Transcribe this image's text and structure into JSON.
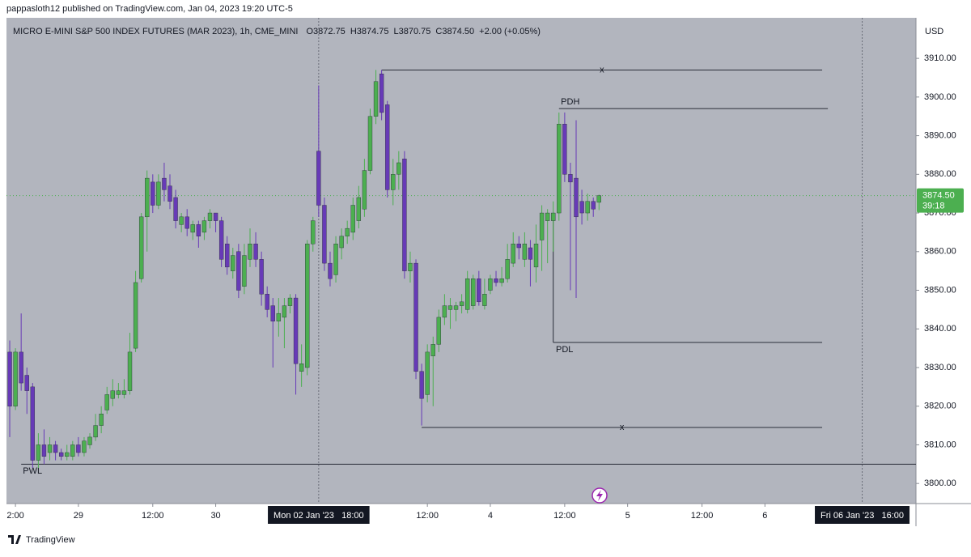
{
  "chart_data": {
    "type": "candlestick",
    "publisher": "pappasloth12 published on TradingView.com, Jan 04, 2023 19:20 UTC-5",
    "title": "MICRO E-MINI S&P 500 INDEX FUTURES (MAR 2023), 1h, CME_MINI",
    "legend": {
      "open": "O3872.75",
      "high": "H3874.75",
      "low": "L3870.75",
      "close": "C3874.50",
      "change": "+2.00 (+0.05%)"
    },
    "currency": "USD",
    "brand": "TradingView",
    "up_color": "#4caf50",
    "down_color": "#673ab7",
    "open": [
      3834,
      3820,
      3834,
      3828,
      3825,
      3806,
      3810,
      3808,
      3810,
      3808,
      3807,
      3807,
      3810,
      3808,
      3810,
      3812,
      3815,
      3819,
      3822,
      3823,
      3823,
      3824,
      3835,
      3853,
      3869,
      3878,
      3872,
      3879,
      3877,
      3874,
      3867,
      3869,
      3865,
      3867,
      3865,
      3868,
      3870,
      3868,
      3862,
      3855,
      3860,
      3851,
      3858,
      3862,
      3858,
      3849,
      3846,
      3842,
      3843,
      3846,
      3848,
      3829,
      3830,
      3862,
      3886,
      3872,
      3857,
      3854,
      3861,
      3864,
      3865,
      3868,
      3871,
      3881,
      3895,
      3906,
      3898,
      3876,
      3880,
      3884,
      3855,
      3857,
      3829,
      3823,
      3833,
      3836,
      3843,
      3845,
      3845,
      3846,
      3845,
      3846,
      3853,
      3846,
      3850,
      3853,
      3852,
      3853,
      3857,
      3862,
      3858,
      3861,
      3856,
      3863,
      3868,
      3868,
      3870,
      3893,
      3880,
      3879,
      3873,
      3870,
      3873,
      3872.75
    ],
    "high": [
      3837,
      3835,
      3844,
      3830,
      3826,
      3813,
      3814,
      3812,
      3811,
      3809,
      3810,
      3811,
      3812,
      3812,
      3813,
      3818,
      3820,
      3825,
      3827,
      3826,
      3827,
      3839,
      3855,
      3870,
      3881,
      3880,
      3880,
      3883,
      3880,
      3876,
      3870,
      3871,
      3868,
      3868,
      3869,
      3871,
      3870,
      3869,
      3864,
      3861,
      3862,
      3862,
      3866,
      3865,
      3860,
      3851,
      3848,
      3848,
      3848,
      3849,
      3849,
      3836,
      3863,
      3869,
      3903,
      3874,
      3860,
      3864,
      3866,
      3868,
      3874,
      3877,
      3884,
      3897,
      3907,
      3907,
      3899,
      3884,
      3886,
      3886,
      3860,
      3858,
      3831,
      3836,
      3838,
      3845,
      3849,
      3848,
      3847,
      3849,
      3855,
      3854,
      3855,
      3853,
      3854,
      3855,
      3856,
      3862,
      3865,
      3864,
      3865,
      3863,
      3867,
      3872,
      3871,
      3873,
      3896,
      3896,
      3883,
      3894,
      3876,
      3875,
      3874,
      3874.75
    ],
    "low": [
      3812,
      3819,
      3824,
      3818,
      3804,
      3804,
      3805,
      3806,
      3806,
      3806,
      3806,
      3806,
      3807,
      3807,
      3809,
      3811,
      3813,
      3818,
      3820,
      3822,
      3822,
      3823,
      3834,
      3852,
      3860,
      3870,
      3871,
      3873,
      3871,
      3866,
      3865,
      3864,
      3863,
      3861,
      3863,
      3866,
      3865,
      3856,
      3854,
      3853,
      3848,
      3849,
      3856,
      3856,
      3846,
      3843,
      3830,
      3838,
      3835,
      3844,
      3823,
      3825,
      3828,
      3860,
      3869,
      3855,
      3851,
      3852,
      3858,
      3862,
      3863,
      3866,
      3869,
      3880,
      3893,
      3894,
      3874,
      3872,
      3876,
      3853,
      3852,
      3827,
      3815,
      3821,
      3820,
      3834,
      3841,
      3840,
      3842,
      3844,
      3844,
      3845,
      3846,
      3845,
      3849,
      3851,
      3851,
      3852,
      3856,
      3858,
      3856,
      3851,
      3852,
      3855,
      3857,
      3860,
      3868,
      3878,
      3850,
      3848,
      3867,
      3868,
      3869,
      3870.75
    ],
    "close": [
      3820,
      3834,
      3826,
      3824,
      3806,
      3810,
      3807,
      3810,
      3808,
      3807,
      3808,
      3810,
      3808,
      3811,
      3812,
      3815,
      3818,
      3823,
      3824,
      3824,
      3824,
      3834,
      3852,
      3869,
      3879,
      3872,
      3878,
      3876,
      3873,
      3868,
      3869,
      3866,
      3867,
      3864,
      3868,
      3870,
      3868,
      3858,
      3856,
      3859,
      3850,
      3859,
      3862,
      3858,
      3849,
      3845,
      3842,
      3844,
      3846,
      3848,
      3831,
      3831,
      3862,
      3868,
      3872,
      3857,
      3853,
      3862,
      3864,
      3866,
      3872,
      3874,
      3881,
      3895,
      3904,
      3896,
      3876,
      3880,
      3883,
      3855,
      3857,
      3829,
      3822,
      3834,
      3836,
      3843,
      3846,
      3846,
      3846,
      3847,
      3853,
      3853,
      3847,
      3849,
      3853,
      3852,
      3853,
      3858,
      3862,
      3861,
      3862,
      3858,
      3862,
      3870,
      3870,
      3870,
      3893,
      3880,
      3878,
      3869,
      3870,
      3873,
      3871,
      3874.5
    ],
    "last_price": {
      "value": 3874.5,
      "label": "3874.50"
    },
    "countdown": "39:18",
    "levels": [
      {
        "label": "x",
        "value": 3907,
        "from": 65,
        "to": 142
      },
      {
        "label": "PDH",
        "value": 3897,
        "from": 96,
        "to": 143
      },
      {
        "label": "PDL",
        "value": 3836.5,
        "from": 95,
        "to": 142
      },
      {
        "label": "x",
        "value": 3814.5,
        "from": 72,
        "to": 142
      },
      {
        "label": "PWL",
        "value": 3805,
        "from": 2,
        "to": 158.4
      }
    ],
    "xlim": [
      -0.57,
      158.4
    ],
    "ylim": [
      3794.8,
      3920.5
    ],
    "yticks": [
      {
        "value": 3800,
        "label": "3800.00"
      },
      {
        "value": 3810,
        "label": "3810.00"
      },
      {
        "value": 3820,
        "label": "3820.00"
      },
      {
        "value": 3830,
        "label": "3830.00"
      },
      {
        "value": 3840,
        "label": "3840.00"
      },
      {
        "value": 3850,
        "label": "3850.00"
      },
      {
        "value": 3860,
        "label": "3860.00"
      },
      {
        "value": 3870,
        "label": "3870.00"
      },
      {
        "value": 3880,
        "label": "3880.00"
      },
      {
        "value": 3890,
        "label": "3890.00"
      },
      {
        "value": 3900,
        "label": "3900.00"
      },
      {
        "value": 3910,
        "label": "3910.00"
      }
    ],
    "xticks": [
      {
        "value": 1,
        "label": "2:00"
      },
      {
        "value": 12,
        "label": "29"
      },
      {
        "value": 25,
        "label": "12:00"
      },
      {
        "value": 36,
        "label": "30"
      },
      {
        "value": 73,
        "label": "12:00"
      },
      {
        "value": 84,
        "label": "4"
      },
      {
        "value": 97,
        "label": "12:00"
      },
      {
        "value": 108,
        "label": "5"
      },
      {
        "value": 121,
        "label": "12:00"
      },
      {
        "value": 132,
        "label": "6"
      }
    ],
    "crosshair_labels": [
      {
        "value": 54,
        "label": "Mon 02 Jan '23   18:00"
      },
      {
        "value": 149,
        "label": "Fri 06 Jan '23   16:00"
      }
    ]
  }
}
